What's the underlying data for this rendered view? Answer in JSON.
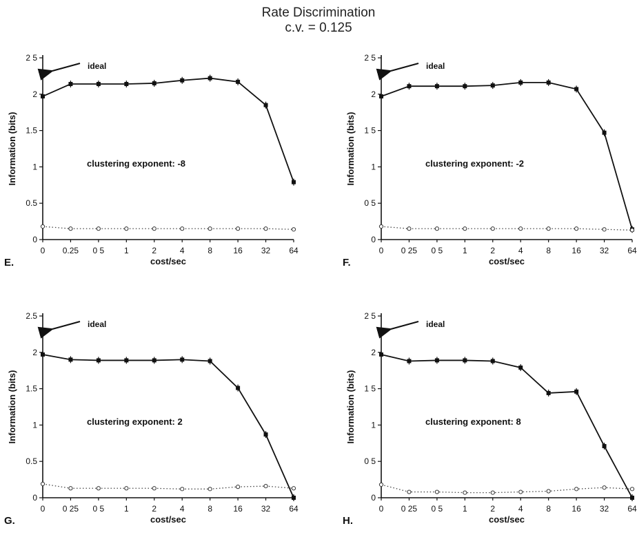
{
  "figure": {
    "title": "Rate Discrimination",
    "subtitle": "c.v. = 0.125"
  },
  "chart_data": [
    {
      "type": "line",
      "panel_label": "E.",
      "annotation": "clustering exponent: -8",
      "ideal_label": "ideal",
      "xlabel": "cost/sec",
      "ylabel": "Information (bits)",
      "categories": [
        "0",
        "0.25",
        "0 5",
        "1",
        "2",
        "4",
        "8",
        "16",
        "32",
        "64"
      ],
      "yticks": [
        "0",
        "0.5",
        "1",
        "1.5",
        "2",
        "2 5"
      ],
      "ylim": [
        0,
        2.5
      ],
      "series": [
        {
          "style": "solid",
          "values": [
            1.97,
            2.14,
            2.14,
            2.14,
            2.15,
            2.19,
            2.22,
            2.17,
            1.85,
            0.79
          ]
        },
        {
          "style": "dotted",
          "values": [
            0.18,
            0.15,
            0.15,
            0.15,
            0.15,
            0.15,
            0.15,
            0.15,
            0.15,
            0.14
          ]
        }
      ]
    },
    {
      "type": "line",
      "panel_label": "F.",
      "annotation": "clustering exponent: -2",
      "ideal_label": "ideal",
      "xlabel": "cost/sec",
      "ylabel": "Information (bits)",
      "categories": [
        "0",
        "0 25",
        "0 5",
        "1",
        "2",
        "4",
        "8",
        "16",
        "32",
        "64"
      ],
      "yticks": [
        "0",
        "0 5",
        "1",
        "1 5",
        "2",
        "2 5"
      ],
      "ylim": [
        0,
        2.5
      ],
      "series": [
        {
          "style": "solid",
          "values": [
            1.97,
            2.11,
            2.11,
            2.11,
            2.12,
            2.16,
            2.16,
            2.07,
            1.47,
            0.14
          ]
        },
        {
          "style": "dotted",
          "values": [
            0.18,
            0.15,
            0.15,
            0.15,
            0.15,
            0.15,
            0.15,
            0.15,
            0.14,
            0.13
          ]
        }
      ]
    },
    {
      "type": "line",
      "panel_label": "G.",
      "annotation": "clustering exponent: 2",
      "ideal_label": "ideal",
      "xlabel": "cost/sec",
      "ylabel": "Information (bits)",
      "categories": [
        "0",
        "0 25",
        "0 5",
        "1",
        "2",
        "4",
        "8",
        "16",
        "32",
        "64"
      ],
      "yticks": [
        "0",
        "0.5",
        "1",
        "1.5",
        "2",
        "2.5"
      ],
      "ylim": [
        0,
        2.5
      ],
      "series": [
        {
          "style": "solid",
          "values": [
            1.97,
            1.9,
            1.89,
            1.89,
            1.89,
            1.9,
            1.88,
            1.51,
            0.87,
            0.0
          ]
        },
        {
          "style": "dotted",
          "values": [
            0.19,
            0.13,
            0.13,
            0.13,
            0.13,
            0.12,
            0.12,
            0.15,
            0.16,
            0.13
          ]
        }
      ]
    },
    {
      "type": "line",
      "panel_label": "H.",
      "annotation": "clustering exponent: 8",
      "ideal_label": "ideal",
      "xlabel": "cost/sec",
      "ylabel": "Information (bits)",
      "categories": [
        "0",
        "0 25",
        "0 5",
        "1",
        "2",
        "4",
        "8",
        "16",
        "32",
        "64"
      ],
      "yticks": [
        "0",
        "0 5",
        "1",
        "1 5",
        "2",
        "2 5"
      ],
      "ylim": [
        0,
        2.5
      ],
      "series": [
        {
          "style": "solid",
          "values": [
            1.97,
            1.88,
            1.89,
            1.89,
            1.88,
            1.79,
            1.44,
            1.46,
            0.71,
            0.0
          ]
        },
        {
          "style": "dotted",
          "values": [
            0.18,
            0.08,
            0.08,
            0.07,
            0.07,
            0.08,
            0.09,
            0.12,
            0.14,
            0.12
          ]
        }
      ]
    }
  ]
}
